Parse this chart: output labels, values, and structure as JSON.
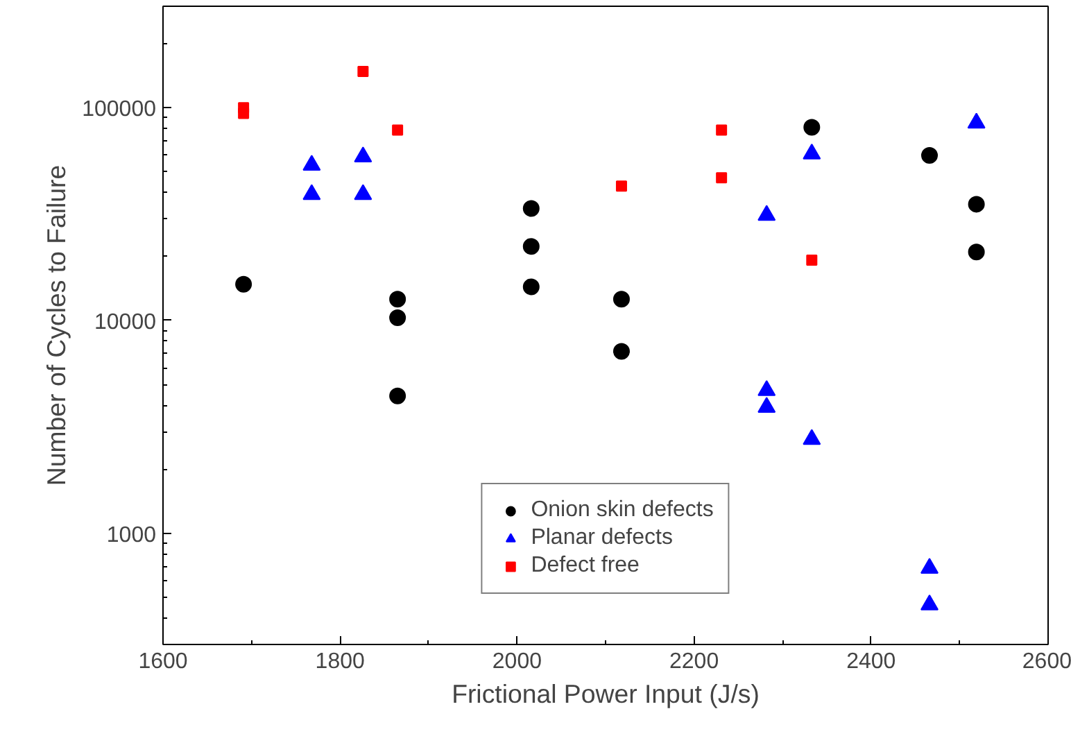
{
  "chart_data": {
    "type": "scatter",
    "xlabel": "Frictional Power Input (J/s)",
    "ylabel": "Number of Cycles to Failure",
    "xlim": [
      1600,
      2600
    ],
    "xticks": [
      1600,
      1800,
      2000,
      2200,
      2400,
      2600
    ],
    "ylim": [
      300,
      300000
    ],
    "yticks": [
      1000,
      10000,
      100000
    ],
    "log": "y",
    "grid": false,
    "legend": "bottom",
    "series": [
      {
        "name": "Onion skin defects",
        "color": "#000000",
        "marker": "circle",
        "x": [
          1691,
          1865,
          1865,
          1865,
          2016,
          2016,
          2016,
          2118,
          2118,
          2333,
          2466,
          2519,
          2519
        ],
        "values": [
          14800,
          12600,
          10300,
          4420,
          33600,
          22300,
          14400,
          12600,
          7160,
          80900,
          59700,
          35200,
          21000
        ]
      },
      {
        "name": "Planar defects",
        "color": "#0000ff",
        "marker": "triangle",
        "x": [
          1768,
          1768,
          1826,
          1826,
          2282,
          2282,
          2282,
          2333,
          2333,
          2466,
          2466,
          2519
        ],
        "values": [
          53700,
          39100,
          58800,
          39100,
          31200,
          4690,
          3910,
          60700,
          2760,
          685,
          461,
          84700
        ]
      },
      {
        "name": "Defect free",
        "color": "#ff0000",
        "marker": "square",
        "x": [
          1691,
          1691,
          1826,
          1865,
          2118,
          2231,
          2231,
          2333
        ],
        "values": [
          100000,
          94000,
          148000,
          78500,
          42800,
          78500,
          46900,
          19200
        ]
      }
    ]
  }
}
